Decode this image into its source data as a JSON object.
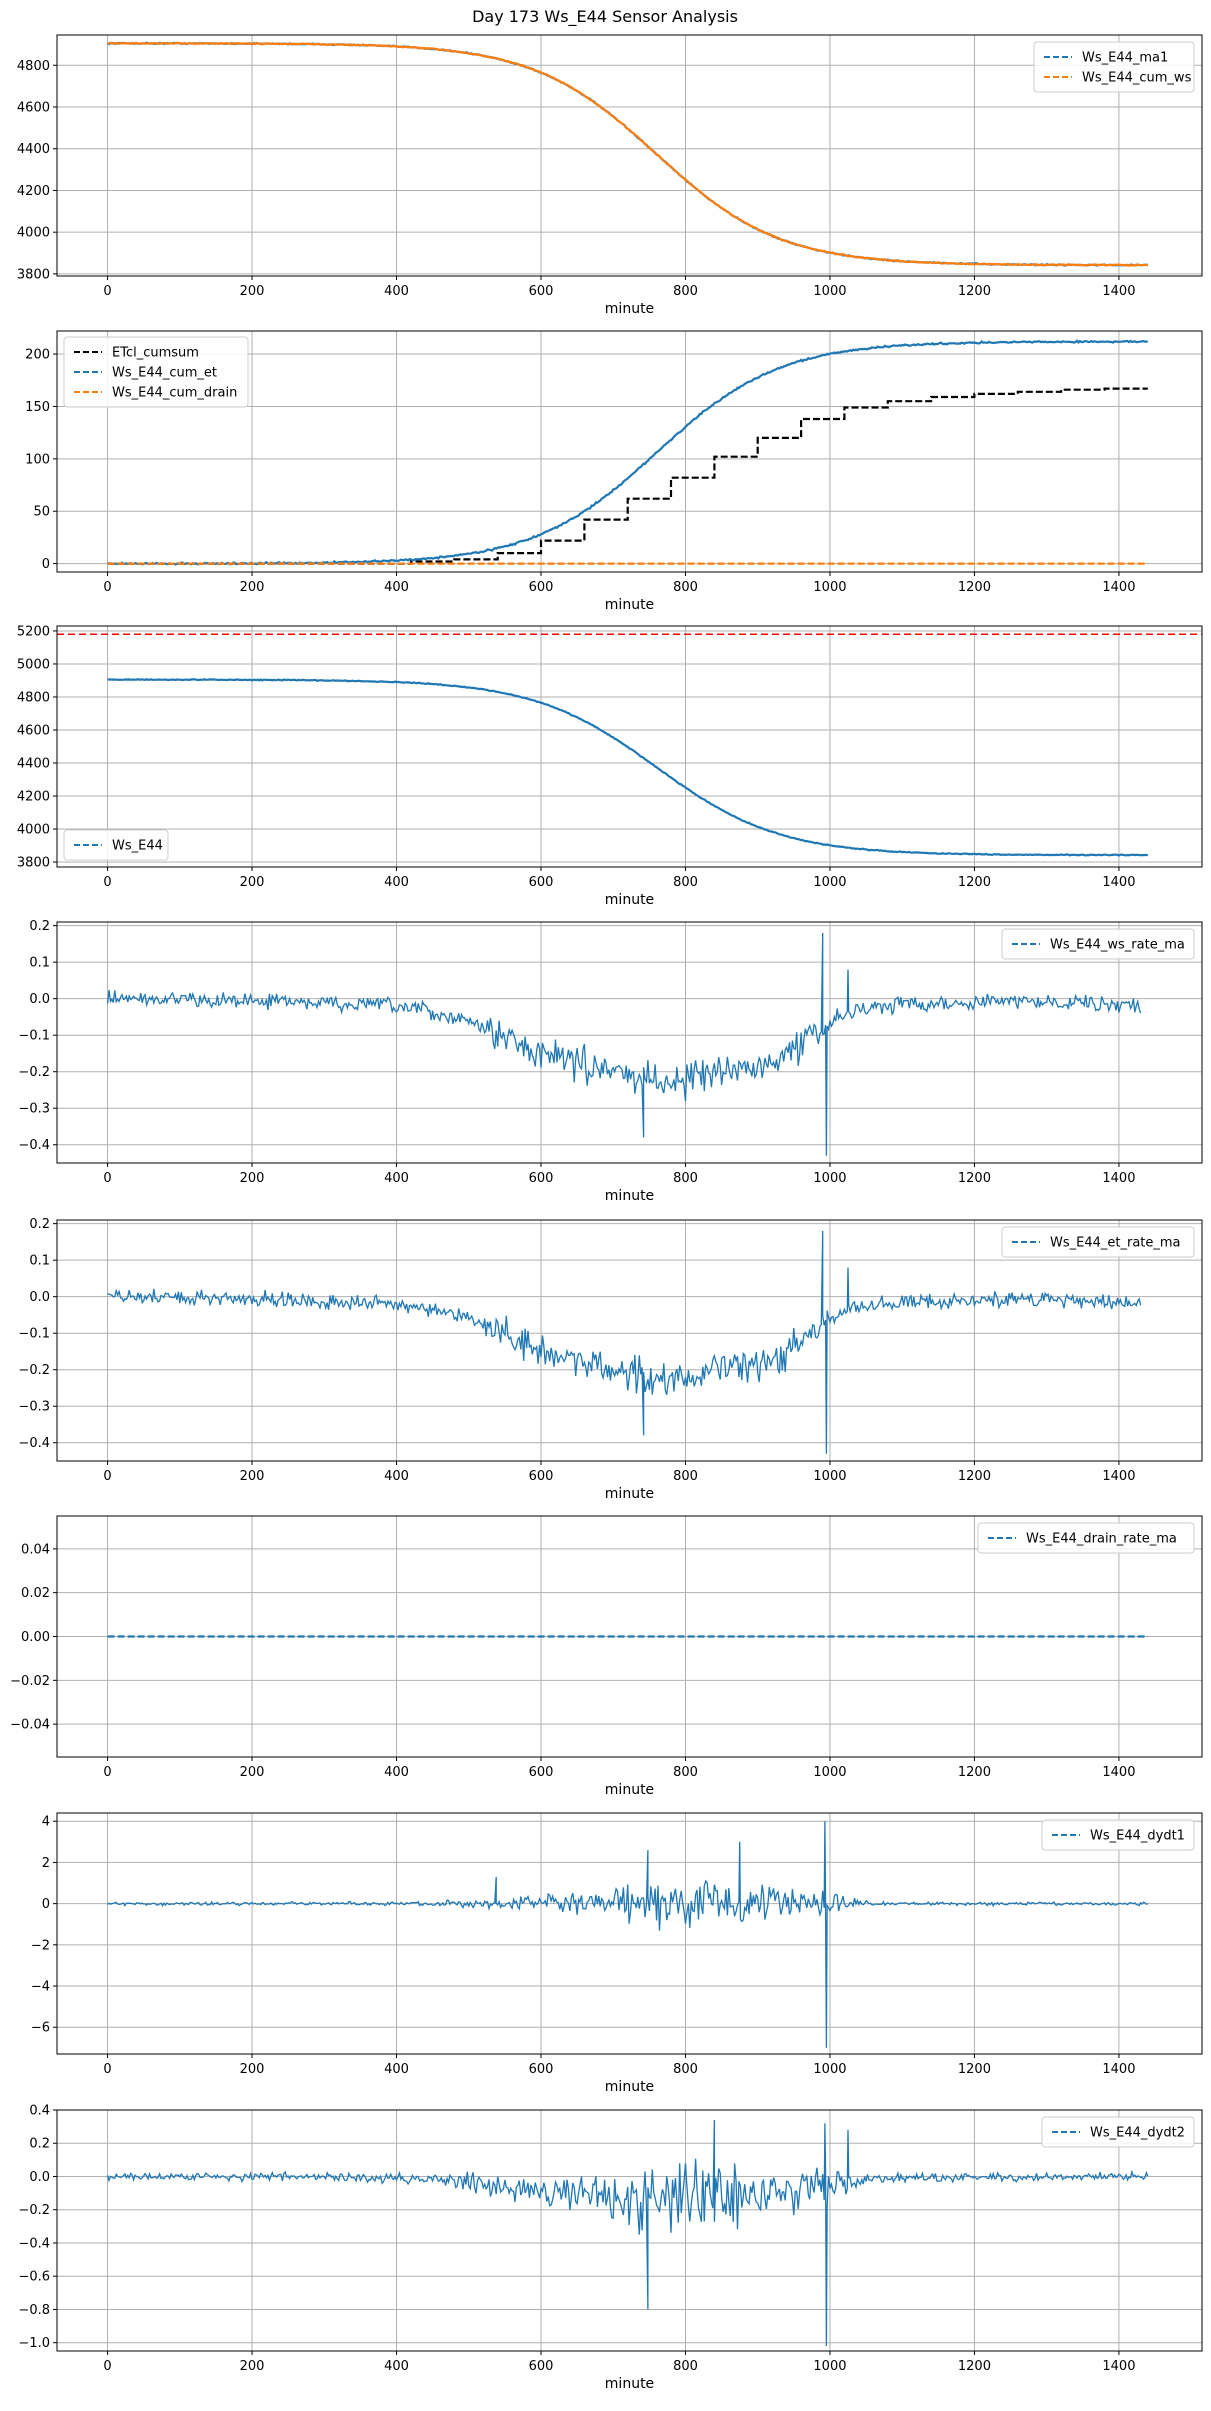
{
  "figure": {
    "title": "Day 173 Ws_E44 Sensor Analysis"
  },
  "chart_data": [
    {
      "type": "line",
      "xlabel": "minute",
      "xlim": [
        -70,
        1515
      ],
      "ylim": [
        3790,
        4945
      ],
      "xticks": [
        0,
        200,
        400,
        600,
        800,
        1000,
        1200,
        1400
      ],
      "yticks": [
        3800,
        4000,
        4200,
        4400,
        4600,
        4800
      ],
      "legend_loc": "upper right",
      "series": [
        {
          "name": "Ws_E44_ma1",
          "color": "#1f77b4",
          "style": "dashed",
          "shape": "ws_curve",
          "noise": 4,
          "points": [
            [
              0,
              4905
            ],
            [
              1440,
              3842
            ]
          ]
        },
        {
          "name": "Ws_E44_cum_ws",
          "color": "#ff7f0e",
          "style": "dashed",
          "shape": "ws_curve",
          "noise": 4,
          "points": [
            [
              0,
              4905
            ],
            [
              1440,
              3842
            ]
          ]
        }
      ]
    },
    {
      "type": "line",
      "xlabel": "minute",
      "xlim": [
        -70,
        1515
      ],
      "ylim": [
        -8,
        222
      ],
      "xticks": [
        0,
        200,
        400,
        600,
        800,
        1000,
        1200,
        1400
      ],
      "yticks": [
        0,
        50,
        100,
        150,
        200
      ],
      "legend_loc": "upper left",
      "series": [
        {
          "name": "ETcl_cumsum",
          "color": "#000000",
          "style": "dashed",
          "shape": "step",
          "noise": 0,
          "points": [
            [
              0,
              0
            ],
            [
              420,
              2
            ],
            [
              480,
              4
            ],
            [
              540,
              10
            ],
            [
              600,
              22
            ],
            [
              660,
              42
            ],
            [
              720,
              62
            ],
            [
              780,
              82
            ],
            [
              840,
              102
            ],
            [
              900,
              120
            ],
            [
              960,
              138
            ],
            [
              1020,
              149
            ],
            [
              1080,
              155
            ],
            [
              1140,
              159
            ],
            [
              1200,
              162
            ],
            [
              1260,
              164
            ],
            [
              1320,
              166
            ],
            [
              1380,
              167
            ],
            [
              1440,
              167
            ]
          ]
        },
        {
          "name": "Ws_E44_cum_et",
          "color": "#1f77b4",
          "style": "dashed",
          "shape": "et_curve",
          "noise": 1.2,
          "points": [
            [
              0,
              0
            ],
            [
              1440,
              212
            ]
          ]
        },
        {
          "name": "Ws_E44_cum_drain",
          "color": "#ff7f0e",
          "style": "dashed",
          "shape": "flat",
          "noise": 0,
          "points": [
            [
              0,
              0
            ],
            [
              1440,
              0
            ]
          ]
        }
      ]
    },
    {
      "type": "line",
      "xlabel": "minute",
      "xlim": [
        -70,
        1515
      ],
      "ylim": [
        3770,
        5230
      ],
      "xticks": [
        0,
        200,
        400,
        600,
        800,
        1000,
        1200,
        1400
      ],
      "yticks": [
        3800,
        4000,
        4200,
        4400,
        4600,
        4800,
        5000,
        5200
      ],
      "legend_loc": "lower left",
      "hline": {
        "y": 5180,
        "color": "#ff0000",
        "style": "dashed"
      },
      "series": [
        {
          "name": "Ws_E44",
          "color": "#1f77b4",
          "style": "dashed",
          "shape": "ws_curve",
          "noise": 4,
          "points": [
            [
              0,
              4905
            ],
            [
              1440,
              3842
            ]
          ]
        }
      ]
    },
    {
      "type": "line",
      "xlabel": "minute",
      "xlim": [
        -70,
        1515
      ],
      "ylim": [
        -0.45,
        0.21
      ],
      "xticks": [
        0,
        200,
        400,
        600,
        800,
        1000,
        1200,
        1400
      ],
      "yticks": [
        -0.4,
        -0.3,
        -0.2,
        -0.1,
        0.0,
        0.1,
        0.2
      ],
      "legend_loc": "upper right",
      "series": [
        {
          "name": "Ws_E44_ws_rate_ma",
          "color": "#1f77b4",
          "style": "dashed",
          "shape": "rate",
          "noise": 0.03,
          "points": [
            [
              0,
              0
            ],
            [
              200,
              -0.005
            ],
            [
              400,
              -0.02
            ],
            [
              500,
              -0.06
            ],
            [
              600,
              -0.15
            ],
            [
              700,
              -0.2
            ],
            [
              750,
              -0.22
            ],
            [
              800,
              -0.22
            ],
            [
              850,
              -0.2
            ],
            [
              900,
              -0.19
            ],
            [
              950,
              -0.14
            ],
            [
              990,
              -0.08
            ],
            [
              1030,
              -0.03
            ],
            [
              1100,
              -0.015
            ],
            [
              1200,
              -0.01
            ],
            [
              1300,
              -0.005
            ],
            [
              1430,
              -0.02
            ]
          ],
          "spikes": [
            [
              990,
              0.18
            ],
            [
              995,
              -0.43
            ],
            [
              742,
              -0.38
            ],
            [
              1025,
              0.08
            ]
          ]
        }
      ]
    },
    {
      "type": "line",
      "xlabel": "minute",
      "xlim": [
        -70,
        1515
      ],
      "ylim": [
        -0.45,
        0.21
      ],
      "xticks": [
        0,
        200,
        400,
        600,
        800,
        1000,
        1200,
        1400
      ],
      "yticks": [
        -0.4,
        -0.3,
        -0.2,
        -0.1,
        0.0,
        0.1,
        0.2
      ],
      "legend_loc": "upper right",
      "series": [
        {
          "name": "Ws_E44_et_rate_ma",
          "color": "#1f77b4",
          "style": "dashed",
          "shape": "rate",
          "noise": 0.03,
          "points": [
            [
              0,
              0
            ],
            [
              200,
              -0.005
            ],
            [
              400,
              -0.02
            ],
            [
              500,
              -0.06
            ],
            [
              600,
              -0.15
            ],
            [
              700,
              -0.2
            ],
            [
              750,
              -0.22
            ],
            [
              800,
              -0.22
            ],
            [
              850,
              -0.2
            ],
            [
              900,
              -0.19
            ],
            [
              950,
              -0.14
            ],
            [
              990,
              -0.08
            ],
            [
              1030,
              -0.03
            ],
            [
              1100,
              -0.015
            ],
            [
              1200,
              -0.01
            ],
            [
              1300,
              -0.005
            ],
            [
              1430,
              -0.02
            ]
          ],
          "spikes": [
            [
              990,
              0.18
            ],
            [
              995,
              -0.43
            ],
            [
              742,
              -0.38
            ],
            [
              1025,
              0.08
            ]
          ]
        }
      ]
    },
    {
      "type": "line",
      "xlabel": "minute",
      "xlim": [
        -70,
        1515
      ],
      "ylim": [
        -0.055,
        0.055
      ],
      "xticks": [
        0,
        200,
        400,
        600,
        800,
        1000,
        1200,
        1400
      ],
      "yticks": [
        -0.04,
        -0.02,
        0.0,
        0.02,
        0.04
      ],
      "legend_loc": "upper right",
      "series": [
        {
          "name": "Ws_E44_drain_rate_ma",
          "color": "#1f77b4",
          "style": "dashed",
          "shape": "flat",
          "noise": 0,
          "points": [
            [
              0,
              0
            ],
            [
              1440,
              0
            ]
          ]
        }
      ]
    },
    {
      "type": "line",
      "xlabel": "minute",
      "xlim": [
        -70,
        1515
      ],
      "ylim": [
        -7.3,
        4.4
      ],
      "xticks": [
        0,
        200,
        400,
        600,
        800,
        1000,
        1200,
        1400
      ],
      "yticks": [
        -6,
        -4,
        -2,
        0,
        2,
        4
      ],
      "legend_loc": "upper right",
      "series": [
        {
          "name": "Ws_E44_dydt1",
          "color": "#1f77b4",
          "style": "dashed",
          "shape": "noise",
          "noise": 0.15,
          "points": [
            [
              0,
              0
            ],
            [
              1440,
              0
            ]
          ],
          "envelope": [
            [
              0,
              0.12
            ],
            [
              450,
              0.15
            ],
            [
              500,
              0.3
            ],
            [
              600,
              0.5
            ],
            [
              700,
              1.0
            ],
            [
              750,
              1.6
            ],
            [
              800,
              1.6
            ],
            [
              850,
              1.5
            ],
            [
              900,
              1.3
            ],
            [
              950,
              1.0
            ],
            [
              1000,
              0.8
            ],
            [
              1030,
              0.5
            ],
            [
              1060,
              0.12
            ],
            [
              1440,
              0.12
            ]
          ],
          "spikes": [
            [
              993,
              4.0
            ],
            [
              995,
              -7.0
            ],
            [
              875,
              3.0
            ],
            [
              748,
              2.6
            ],
            [
              538,
              1.3
            ]
          ]
        }
      ]
    },
    {
      "type": "line",
      "xlabel": "minute",
      "xlim": [
        -70,
        1515
      ],
      "ylim": [
        -1.05,
        0.4
      ],
      "xticks": [
        0,
        200,
        400,
        600,
        800,
        1000,
        1200,
        1400
      ],
      "yticks": [
        -1.0,
        -0.8,
        -0.6,
        -0.4,
        -0.2,
        0.0,
        0.2,
        0.4
      ],
      "legend_loc": "upper right",
      "series": [
        {
          "name": "Ws_E44_dydt2",
          "color": "#1f77b4",
          "style": "dashed",
          "shape": "noise",
          "noise": 0.03,
          "points": [
            [
              0,
              0
            ],
            [
              200,
              0
            ],
            [
              400,
              -0.01
            ],
            [
              500,
              -0.03
            ],
            [
              600,
              -0.08
            ],
            [
              700,
              -0.12
            ],
            [
              800,
              -0.13
            ],
            [
              900,
              -0.12
            ],
            [
              1000,
              -0.05
            ],
            [
              1050,
              -0.01
            ],
            [
              1440,
              0
            ]
          ],
          "envelope": [
            [
              0,
              0.035
            ],
            [
              450,
              0.04
            ],
            [
              500,
              0.08
            ],
            [
              600,
              0.12
            ],
            [
              700,
              0.22
            ],
            [
              750,
              0.3
            ],
            [
              800,
              0.3
            ],
            [
              850,
              0.28
            ],
            [
              900,
              0.25
            ],
            [
              950,
              0.2
            ],
            [
              1000,
              0.16
            ],
            [
              1030,
              0.1
            ],
            [
              1060,
              0.035
            ],
            [
              1440,
              0.035
            ]
          ],
          "spikes": [
            [
              993,
              0.32
            ],
            [
              995,
              -1.02
            ],
            [
              748,
              -0.8
            ],
            [
              840,
              0.34
            ],
            [
              1025,
              0.28
            ]
          ]
        }
      ]
    }
  ]
}
